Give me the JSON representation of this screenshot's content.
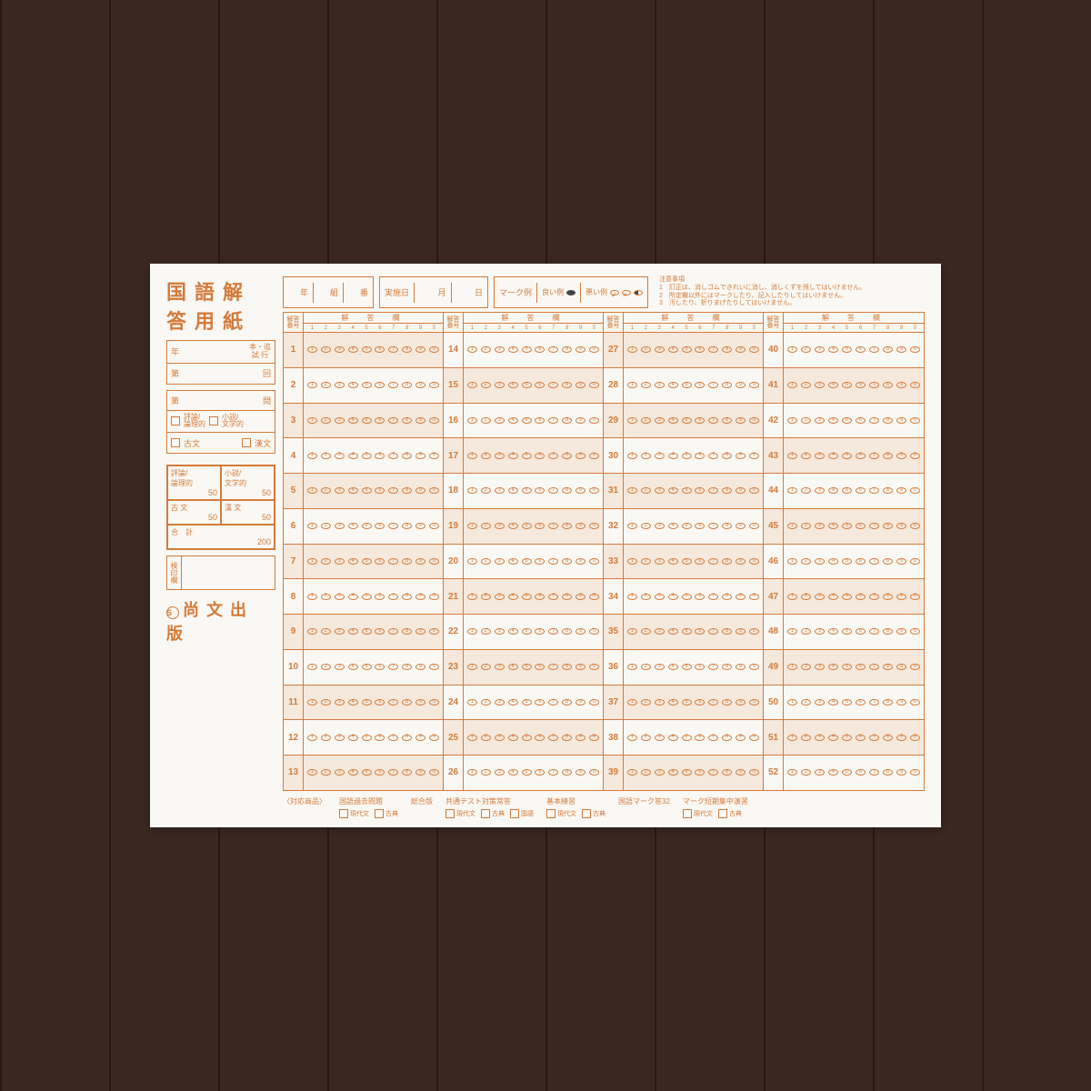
{
  "title": "国語解答用紙",
  "info": {
    "year_label": "年",
    "exam_type": "本・追\n試  行",
    "round_prefix": "第",
    "round_suffix": "回",
    "section_label": "問",
    "cat1a": "評論/\n論理的",
    "cat1b": "小説/\n文学的",
    "cat2a": "古文",
    "cat2b": "漢文"
  },
  "scores": {
    "s1": "評論/\n論理的",
    "s2": "小説/\n文学的",
    "s3": "古 文",
    "s4": "漢 文",
    "s5": "合　計",
    "den50": "50",
    "den200": "200"
  },
  "stamp_label": "検印欄",
  "publisher": "尚文出版",
  "header": {
    "class_labels": [
      "年",
      "組",
      "番"
    ],
    "date_label": "実施日",
    "month": "月",
    "day": "日",
    "mark_label": "マーク例",
    "good": "良い例",
    "bad": "悪い例",
    "notes_title": "注意事項",
    "note1": "1　訂正は、消しゴムできれいに消し、消しくずを残してはいけません。",
    "note2": "2　所定欄以外にはマークしたり、記入したりしてはいけません。",
    "note3": "3　汚したり、折りまげたりしてはいけません。"
  },
  "grid": {
    "qnum_head": "解答\n番号",
    "ans_head": "解　答　欄",
    "col_header_nums": [
      "1",
      "2",
      "3",
      "4",
      "5",
      "6",
      "7",
      "8",
      "9",
      "0"
    ],
    "columns": [
      {
        "start": 1,
        "end": 13
      },
      {
        "start": 14,
        "end": 26
      },
      {
        "start": 27,
        "end": 39
      },
      {
        "start": 40,
        "end": 52
      }
    ],
    "bubble_digits": [
      "1",
      "2",
      "3",
      "4",
      "5",
      "6",
      "7",
      "8",
      "9",
      "0"
    ]
  },
  "footer": {
    "compat_label": "〈対応商品〉",
    "groups": [
      {
        "title": "国語過去問題",
        "opts": [
          "現代文",
          "古典"
        ]
      },
      {
        "title": "総合版",
        "opts": []
      },
      {
        "title": "共通テスト対策常答",
        "opts": [
          "現代文",
          "古典",
          "国語"
        ]
      },
      {
        "title": "基本練習",
        "opts": [
          "現代文",
          "古典"
        ]
      },
      {
        "title": "国語マーク答32",
        "opts": []
      },
      {
        "title": "マーク短期集中演習",
        "opts": [
          "現代文",
          "古典"
        ]
      }
    ]
  }
}
